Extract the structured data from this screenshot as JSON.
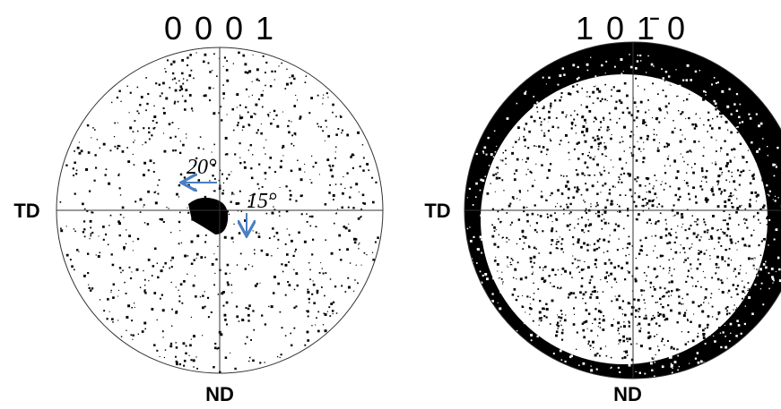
{
  "panels": [
    {
      "title": "0 0 0 1",
      "left_label": "TD",
      "bottom_label": "ND",
      "annotations": [
        "20°",
        "15°"
      ]
    },
    {
      "title": "1 0 1̄ 0",
      "left_label": "TD",
      "bottom_label": "ND"
    }
  ]
}
